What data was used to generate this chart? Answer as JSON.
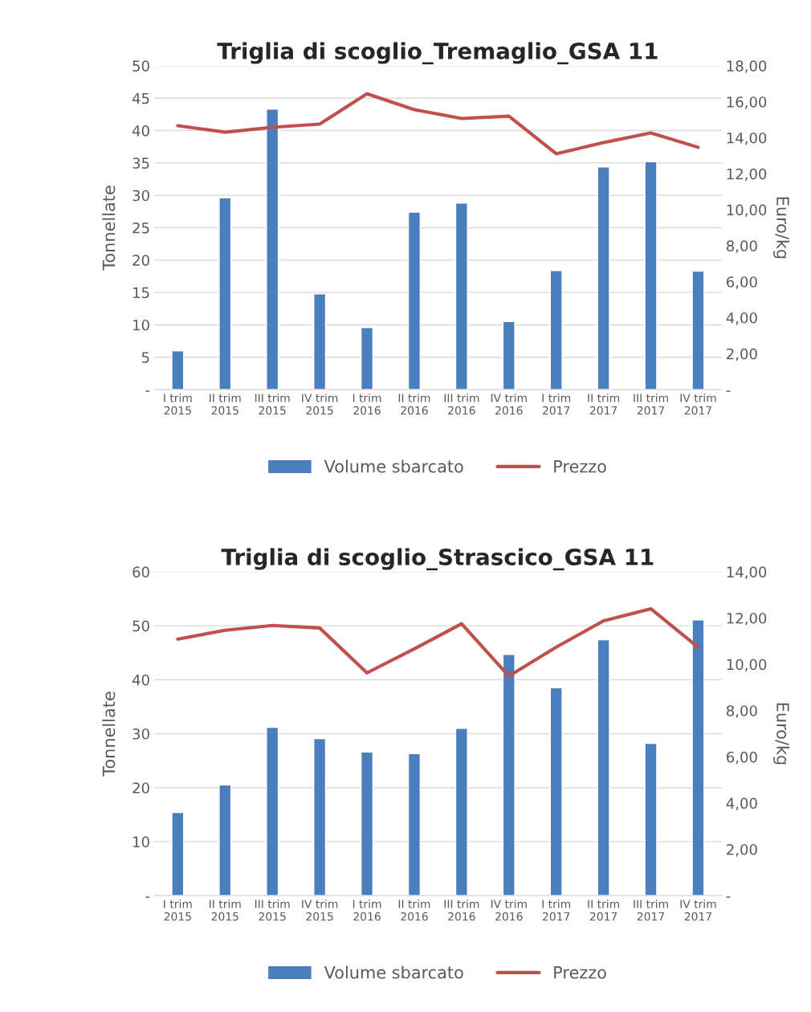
{
  "chart_data": [
    {
      "type": "bar",
      "title": "Triglia di scoglio_Tremaglio_GSA 11",
      "ylabel": "Tonnellate",
      "y2label": "Euro/kg",
      "categories": [
        "I trim\n2015",
        "II trim\n2015",
        "III trim\n2015",
        "IV trim\n2015",
        "I trim\n2016",
        "II trim\n2016",
        "III trim\n2016",
        "IV trim\n2016",
        "I trim\n2017",
        "II trim\n2017",
        "III trim\n2017",
        "IV trim\n2017"
      ],
      "series": [
        {
          "name": "Volume sbarcato",
          "color": "#4a7ebf",
          "values": [
            6.0,
            29.6,
            43.3,
            14.8,
            9.6,
            27.4,
            28.8,
            10.5,
            18.4,
            34.4,
            35.2,
            18.3
          ]
        },
        {
          "name": "Prezzo",
          "type": "line",
          "axis": "y2",
          "color": "#c0504d",
          "values": [
            14.67,
            14.31,
            14.58,
            14.76,
            16.44,
            15.56,
            15.07,
            15.2,
            13.11,
            13.73,
            14.27,
            13.47
          ]
        }
      ],
      "ylim": [
        0,
        50
      ],
      "yticks": [
        {
          "value": 0,
          "label": "-"
        },
        5,
        10,
        15,
        20,
        25,
        30,
        35,
        40,
        45,
        50
      ],
      "y2lim": [
        0,
        18
      ],
      "y2ticks": [
        {
          "value": 0,
          "label": "-"
        },
        {
          "value": 2,
          "label": "2,00"
        },
        {
          "value": 4,
          "label": "4,00"
        },
        {
          "value": 6,
          "label": "6,00"
        },
        {
          "value": 8,
          "label": "8,00"
        },
        {
          "value": 10,
          "label": "10,00"
        },
        {
          "value": 12,
          "label": "12,00"
        },
        {
          "value": 14,
          "label": "14,00"
        },
        {
          "value": 16,
          "label": "16,00"
        },
        {
          "value": 18,
          "label": "18,00"
        }
      ],
      "grid": "y",
      "legend": "bottom"
    },
    {
      "type": "bar",
      "title": "Triglia di scoglio_Strascico_GSA 11",
      "ylabel": "Tonnellate",
      "y2label": "Euro/kg",
      "categories": [
        "I trim\n2015",
        "II trim\n2015",
        "III trim\n2015",
        "IV trim\n2015",
        "I trim\n2016",
        "II trim\n2016",
        "III trim\n2016",
        "IV trim\n2016",
        "I trim\n2017",
        "II trim\n2017",
        "III trim\n2017",
        "IV trim\n2017"
      ],
      "series": [
        {
          "name": "Volume sbarcato",
          "color": "#4a7ebf",
          "values": [
            15.4,
            20.5,
            31.2,
            29.1,
            26.6,
            26.3,
            31.0,
            44.7,
            38.5,
            47.4,
            28.2,
            51.1
          ]
        },
        {
          "name": "Prezzo",
          "type": "line",
          "axis": "y2",
          "color": "#c0504d",
          "values": [
            11.09,
            11.47,
            11.68,
            11.57,
            9.63,
            10.67,
            11.75,
            9.49,
            10.74,
            11.88,
            12.4,
            10.74
          ]
        }
      ],
      "ylim": [
        0,
        60
      ],
      "yticks": [
        {
          "value": 0,
          "label": "-"
        },
        10,
        20,
        30,
        40,
        50,
        60
      ],
      "y2lim": [
        0,
        14
      ],
      "y2ticks": [
        {
          "value": 0,
          "label": "-"
        },
        {
          "value": 2,
          "label": "2,00"
        },
        {
          "value": 4,
          "label": "4,00"
        },
        {
          "value": 6,
          "label": "6,00"
        },
        {
          "value": 8,
          "label": "8,00"
        },
        {
          "value": 10,
          "label": "10,00"
        },
        {
          "value": 12,
          "label": "12,00"
        },
        {
          "value": 14,
          "label": "14,00"
        }
      ],
      "grid": "y",
      "legend": "bottom"
    }
  ]
}
